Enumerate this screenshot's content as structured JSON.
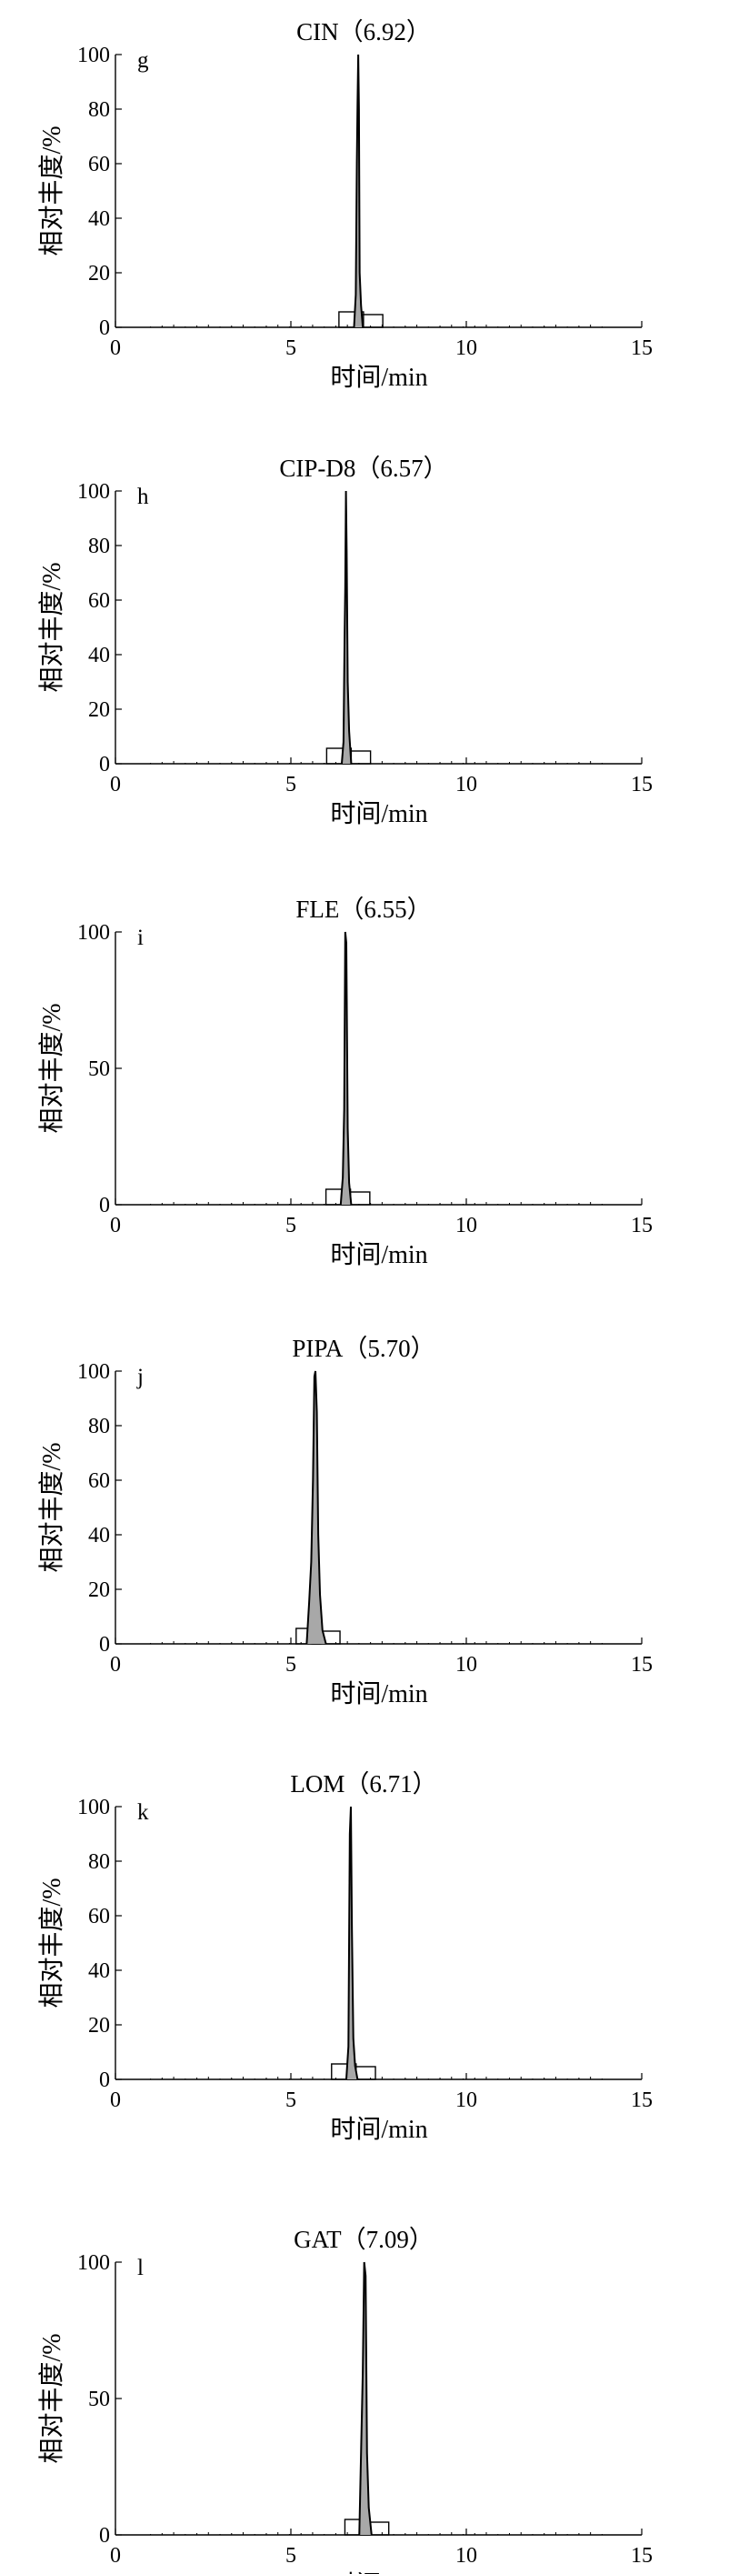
{
  "x_axis_label": "时间/min",
  "y_axis_label": "相对丰度/%",
  "chart_data": [
    {
      "type": "line",
      "letter": "g",
      "title": "CIN（6.92）",
      "peak_rt": 6.92,
      "xlabel": "时间/min",
      "ylabel": "相对丰度/%",
      "xlim": [
        0,
        15
      ],
      "ylim": [
        0,
        100
      ],
      "xticks": [
        0,
        5,
        10,
        15
      ],
      "yticks": [
        0,
        20,
        40,
        60,
        80,
        100
      ],
      "series": [
        {
          "x": [
            6.8,
            6.85,
            6.88,
            6.9,
            6.92,
            6.94,
            6.96,
            7.0,
            7.05
          ],
          "y": [
            0,
            12,
            60,
            82,
            100,
            80,
            20,
            8,
            0
          ]
        }
      ]
    },
    {
      "type": "line",
      "letter": "h",
      "title": "CIP-D8（6.57）",
      "peak_rt": 6.57,
      "xlabel": "时间/min",
      "ylabel": "相对丰度/%",
      "xlim": [
        0,
        15
      ],
      "ylim": [
        0,
        100
      ],
      "xticks": [
        0,
        5,
        10,
        15
      ],
      "yticks": [
        0,
        20,
        40,
        60,
        80,
        100
      ],
      "series": [
        {
          "x": [
            6.45,
            6.5,
            6.53,
            6.55,
            6.57,
            6.59,
            6.62,
            6.66,
            6.72
          ],
          "y": [
            0,
            8,
            45,
            65,
            100,
            78,
            30,
            12,
            0
          ]
        }
      ]
    },
    {
      "type": "line",
      "letter": "i",
      "title": "FLE（6.55）",
      "peak_rt": 6.55,
      "xlabel": "时间/min",
      "ylabel": "相对丰度/%",
      "xlim": [
        0,
        15
      ],
      "ylim": [
        0,
        100
      ],
      "xticks": [
        0,
        5,
        10,
        15
      ],
      "yticks": [
        0,
        50,
        100
      ],
      "series": [
        {
          "x": [
            6.42,
            6.48,
            6.52,
            6.55,
            6.58,
            6.62,
            6.66,
            6.72
          ],
          "y": [
            0,
            10,
            35,
            100,
            96,
            28,
            8,
            0
          ]
        }
      ]
    },
    {
      "type": "line",
      "letter": "j",
      "title": "PIPA（5.70）",
      "peak_rt": 5.7,
      "xlabel": "时间/min",
      "ylabel": "相对丰度/%",
      "xlim": [
        0,
        15
      ],
      "ylim": [
        0,
        100
      ],
      "xticks": [
        0,
        5,
        10,
        15
      ],
      "yticks": [
        0,
        20,
        40,
        60,
        80,
        100
      ],
      "series": [
        {
          "x": [
            5.45,
            5.52,
            5.58,
            5.63,
            5.67,
            5.7,
            5.74,
            5.78,
            5.83,
            5.9,
            6.0
          ],
          "y": [
            0,
            15,
            30,
            60,
            98,
            100,
            85,
            40,
            18,
            5,
            0
          ]
        }
      ]
    },
    {
      "type": "line",
      "letter": "k",
      "title": "LOM（6.71）",
      "peak_rt": 6.71,
      "xlabel": "时间/min",
      "ylabel": "相对丰度/%",
      "xlim": [
        0,
        15
      ],
      "ylim": [
        0,
        100
      ],
      "xticks": [
        0,
        5,
        10,
        15
      ],
      "yticks": [
        0,
        20,
        40,
        60,
        80,
        100
      ],
      "series": [
        {
          "x": [
            6.58,
            6.64,
            6.68,
            6.71,
            6.74,
            6.78,
            6.83,
            6.9
          ],
          "y": [
            0,
            12,
            90,
            100,
            55,
            15,
            5,
            0
          ]
        }
      ]
    },
    {
      "type": "line",
      "letter": "l",
      "title": "GAT（7.09）",
      "peak_rt": 7.09,
      "xlabel": "时间/min",
      "ylabel": "相对丰度/%",
      "xlim": [
        0,
        15
      ],
      "ylim": [
        0,
        100
      ],
      "xticks": [
        0,
        5,
        10,
        15
      ],
      "yticks": [
        0,
        50,
        100
      ],
      "series": [
        {
          "x": [
            6.95,
            7.0,
            7.05,
            7.09,
            7.13,
            7.17,
            7.22,
            7.3
          ],
          "y": [
            0,
            30,
            60,
            100,
            95,
            30,
            10,
            0
          ]
        }
      ]
    }
  ]
}
